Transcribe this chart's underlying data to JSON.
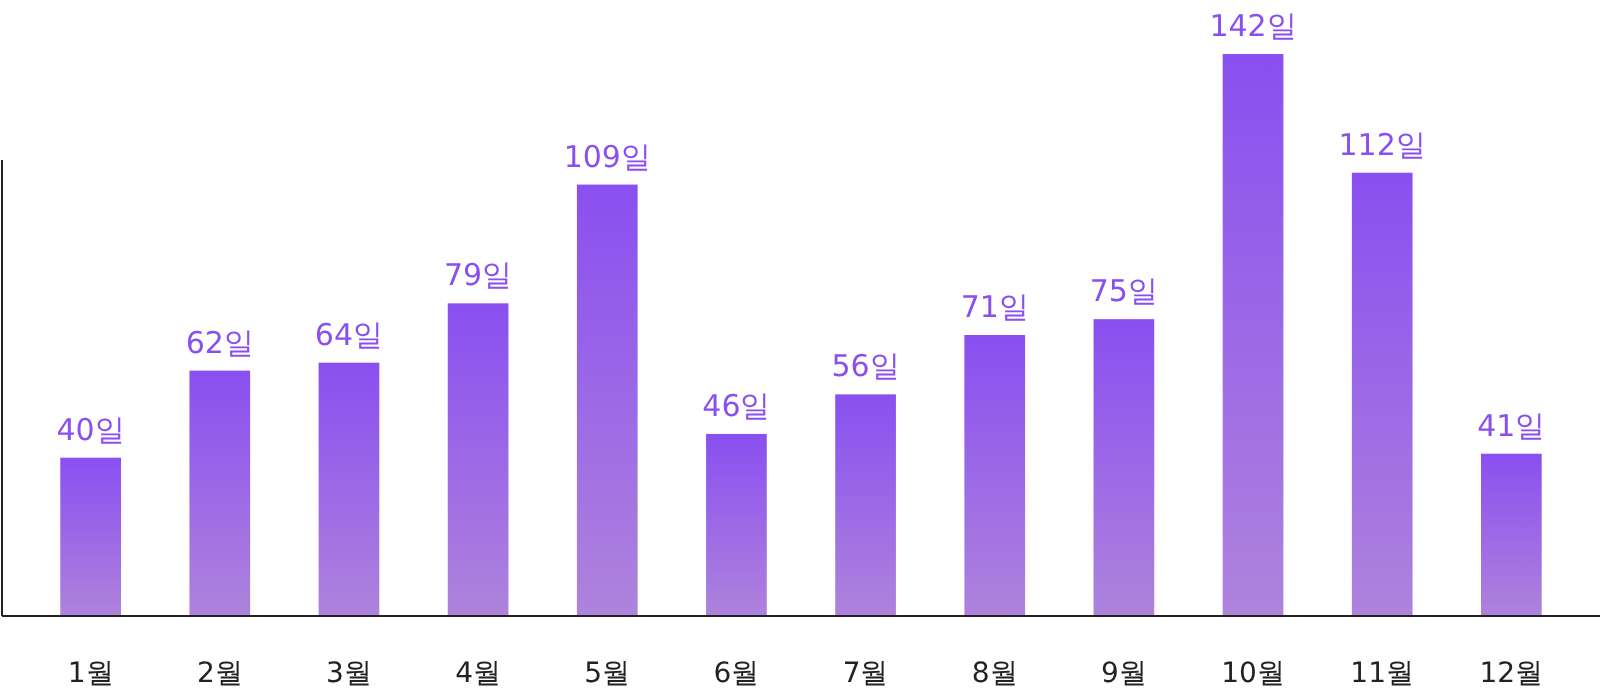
{
  "chart_data": {
    "type": "bar",
    "categories": [
      "1월",
      "2월",
      "3월",
      "4월",
      "5월",
      "6월",
      "7월",
      "8월",
      "9월",
      "10월",
      "11월",
      "12월"
    ],
    "values": [
      40,
      62,
      64,
      79,
      109,
      46,
      56,
      71,
      75,
      142,
      112,
      41
    ],
    "value_labels": [
      "40일",
      "62일",
      "64일",
      "79일",
      "109일",
      "46일",
      "56일",
      "71일",
      "75일",
      "142일",
      "112일",
      "41일"
    ],
    "color": "#8a4ff0"
  }
}
